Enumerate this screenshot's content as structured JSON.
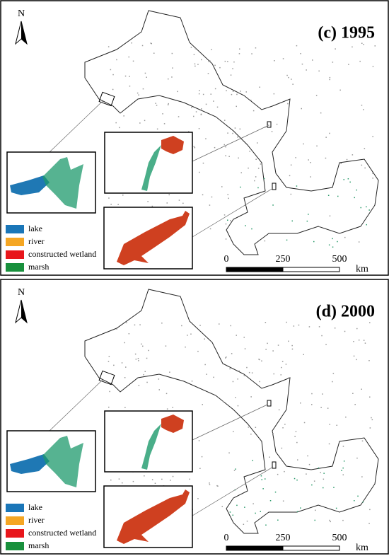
{
  "panels": [
    {
      "label": "(c) 1995",
      "north": "N",
      "legend": [
        {
          "name": "lake",
          "color": "#1a76b8"
        },
        {
          "name": "river",
          "color": "#f5a623"
        },
        {
          "name": "constructed wetland",
          "color": "#e8161b"
        },
        {
          "name": "marsh",
          "color": "#18903c"
        }
      ],
      "scale_bar": {
        "ticks": [
          "0",
          "250",
          "500"
        ],
        "unit": "km"
      }
    },
    {
      "label": "(d) 2000",
      "north": "N",
      "legend": [
        {
          "name": "lake",
          "color": "#1a76b8"
        },
        {
          "name": "river",
          "color": "#f5a623"
        },
        {
          "name": "constructed wetland",
          "color": "#e8161b"
        },
        {
          "name": "marsh",
          "color": "#18903c"
        }
      ],
      "scale_bar": {
        "ticks": [
          "0",
          "250",
          "500"
        ],
        "unit": "km"
      }
    }
  ]
}
